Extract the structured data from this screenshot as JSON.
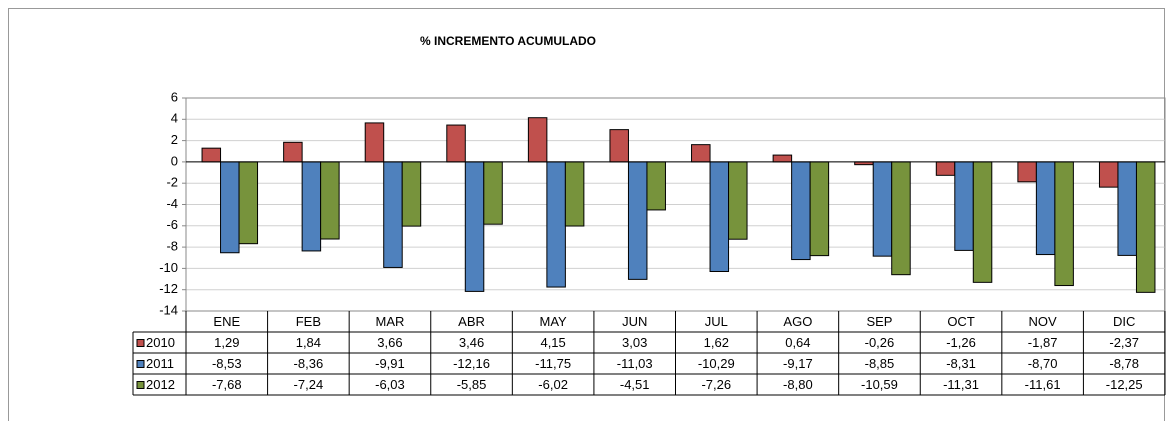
{
  "chart_data": {
    "type": "bar",
    "title": "% INCREMENTO ACUMULADO",
    "categories": [
      "ENE",
      "FEB",
      "MAR",
      "ABR",
      "MAY",
      "JUN",
      "JUL",
      "AGO",
      "SEP",
      "OCT",
      "NOV",
      "DIC"
    ],
    "series": [
      {
        "name": "2010",
        "color": "#c0504d",
        "values": [
          1.29,
          1.84,
          3.66,
          3.46,
          4.15,
          3.03,
          1.62,
          0.64,
          -0.26,
          -1.26,
          -1.87,
          -2.37
        ],
        "value_labels": [
          "1,29",
          "1,84",
          "3,66",
          "3,46",
          "4,15",
          "3,03",
          "1,62",
          "0,64",
          "-0,26",
          "-1,26",
          "-1,87",
          "-2,37"
        ]
      },
      {
        "name": "2011",
        "color": "#4f81bd",
        "values": [
          -8.53,
          -8.36,
          -9.91,
          -12.16,
          -11.75,
          -11.03,
          -10.29,
          -9.17,
          -8.85,
          -8.31,
          -8.7,
          -8.78
        ],
        "value_labels": [
          "-8,53",
          "-8,36",
          "-9,91",
          "-12,16",
          "-11,75",
          "-11,03",
          "-10,29",
          "-9,17",
          "-8,85",
          "-8,31",
          "-8,70",
          "-8,78"
        ]
      },
      {
        "name": "2012",
        "color": "#77933c",
        "values": [
          -7.68,
          -7.24,
          -6.03,
          -5.85,
          -6.02,
          -4.51,
          -7.26,
          -8.8,
          -10.59,
          -11.31,
          -11.61,
          -12.25
        ],
        "value_labels": [
          "-7,68",
          "-7,24",
          "-6,03",
          "-5,85",
          "-6,02",
          "-4,51",
          "-7,26",
          "-8,80",
          "-10,59",
          "-11,31",
          "-11,61",
          "-12,25"
        ]
      }
    ],
    "ylim": [
      -14,
      6
    ],
    "yticks": [
      -14,
      -12,
      -10,
      -8,
      -6,
      -4,
      -2,
      0,
      2,
      4,
      6
    ],
    "grid": true
  }
}
